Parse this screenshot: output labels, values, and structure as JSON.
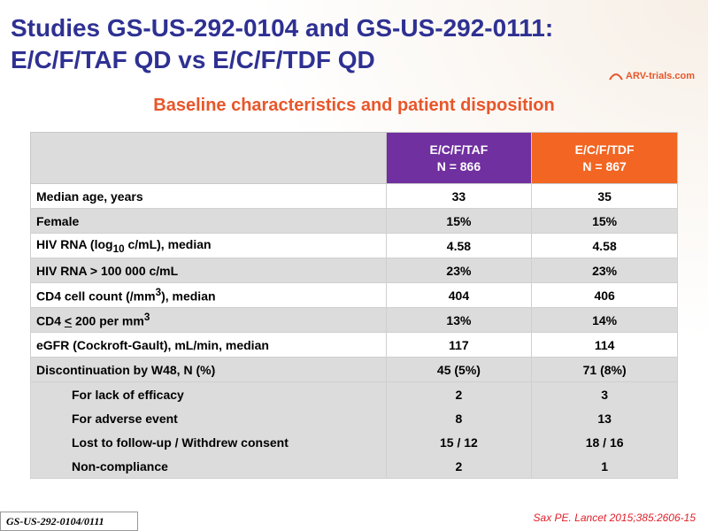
{
  "title": {
    "line1": "Studies GS-US-292-0104 and GS-US-292-0111:",
    "line2": "E/C/F/TAF QD vs E/C/F/TDF QD"
  },
  "logo": {
    "text": "ARV-trials.com"
  },
  "subtitle": "Baseline characteristics and patient disposition",
  "table": {
    "columns": [
      {
        "name": "E/C/F/TAF",
        "n": "N = 866"
      },
      {
        "name": "E/C/F/TDF",
        "n": "N = 867"
      }
    ],
    "rows": [
      {
        "label": "Median age, years",
        "taf": "33",
        "tdf": "35"
      },
      {
        "label": "Female",
        "taf": "15%",
        "tdf": "15%"
      },
      {
        "label_main": "HIV RNA (log",
        "label_sub": "10",
        "label_end": " c/mL), median",
        "taf": "4.58",
        "tdf": "4.58"
      },
      {
        "label": "HIV RNA > 100 000 c/mL",
        "taf": "23%",
        "tdf": "23%"
      },
      {
        "label_main": "CD4 cell count (/mm",
        "label_sup": "3",
        "label_end": "), median",
        "taf": "404",
        "tdf": "406"
      },
      {
        "label_main": "CD4 ",
        "label_u": "<",
        "label_mid": " 200 per mm",
        "label_sup": "3",
        "taf": "13%",
        "tdf": "14%"
      },
      {
        "label": "eGFR (Cockroft-Gault), mL/min, median",
        "taf": "117",
        "tdf": "114"
      },
      {
        "label": "Discontinuation by W48, N (%)",
        "taf": "45 (5%)",
        "tdf": "71 (8%)"
      },
      {
        "label": "For lack of efficacy",
        "taf": "2",
        "tdf": "3"
      },
      {
        "label": "For adverse event",
        "taf": "8",
        "tdf": "13"
      },
      {
        "label": "Lost to follow-up / Withdrew consent",
        "taf": "15 / 12",
        "tdf": "18 / 16"
      },
      {
        "label": "Non-compliance",
        "taf": "2",
        "tdf": "1"
      }
    ]
  },
  "footer": {
    "tag": "GS-US-292-0104/0111",
    "citation": "Sax PE. Lancet 2015;385:2606-15"
  },
  "colors": {
    "title": "#2e3192",
    "accent": "#e8562a",
    "taf_header": "#7030a0",
    "tdf_header": "#f26522"
  }
}
